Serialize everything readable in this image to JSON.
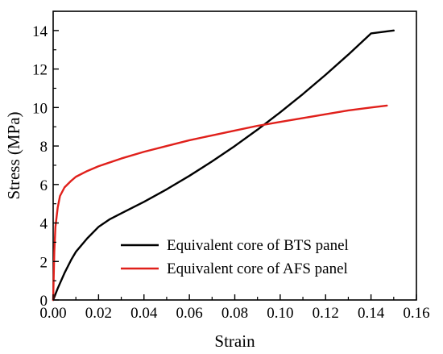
{
  "chart_data": {
    "type": "line",
    "title": "",
    "xlabel": "Strain",
    "ylabel": "Stress (MPa)",
    "xlim": [
      0,
      0.16
    ],
    "ylim": [
      0,
      15
    ],
    "xticks": [
      0.0,
      0.02,
      0.04,
      0.06,
      0.08,
      0.1,
      0.12,
      0.14,
      0.16
    ],
    "xtick_labels": [
      "0.00",
      "0.02",
      "0.04",
      "0.06",
      "0.08",
      "0.10",
      "0.12",
      "0.14",
      "0.16"
    ],
    "yticks": [
      0,
      2,
      4,
      6,
      8,
      10,
      12,
      14
    ],
    "ytick_labels": [
      "0",
      "2",
      "4",
      "6",
      "8",
      "10",
      "12",
      "14"
    ],
    "grid": false,
    "legend_position": "bottom-right",
    "series": [
      {
        "name": "Equivalent core of BTS panel",
        "color": "#000000",
        "x": [
          0,
          0.002,
          0.005,
          0.008,
          0.01,
          0.015,
          0.02,
          0.025,
          0.03,
          0.04,
          0.05,
          0.06,
          0.07,
          0.08,
          0.09,
          0.1,
          0.11,
          0.12,
          0.13,
          0.14,
          0.15
        ],
        "y": [
          0,
          0.6,
          1.4,
          2.1,
          2.5,
          3.2,
          3.8,
          4.2,
          4.5,
          5.1,
          5.75,
          6.45,
          7.2,
          8.0,
          8.85,
          9.75,
          10.7,
          11.7,
          12.75,
          13.85,
          14.0
        ]
      },
      {
        "name": "Equivalent core of AFS panel",
        "color": "#e0201b",
        "x": [
          0,
          0.0005,
          0.001,
          0.002,
          0.003,
          0.005,
          0.008,
          0.01,
          0.015,
          0.02,
          0.03,
          0.04,
          0.05,
          0.06,
          0.07,
          0.08,
          0.09,
          0.1,
          0.11,
          0.12,
          0.13,
          0.14,
          0.147
        ],
        "y": [
          0,
          2.5,
          3.8,
          4.8,
          5.4,
          5.85,
          6.2,
          6.4,
          6.7,
          6.95,
          7.35,
          7.7,
          8.0,
          8.3,
          8.55,
          8.8,
          9.05,
          9.25,
          9.45,
          9.65,
          9.85,
          10.0,
          10.1
        ]
      }
    ]
  }
}
